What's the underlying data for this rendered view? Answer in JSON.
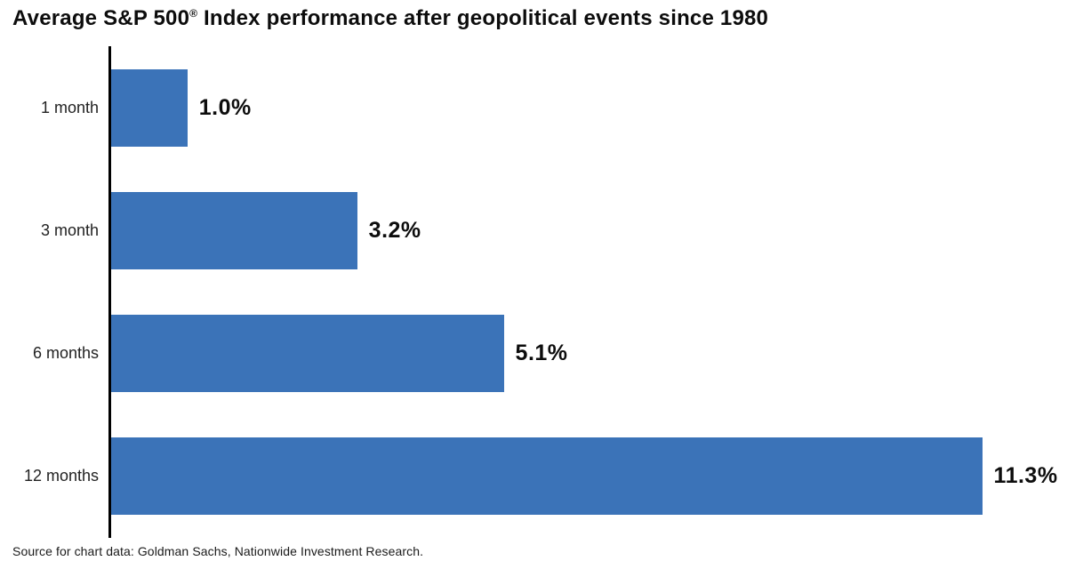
{
  "title": {
    "prefix": "Average S&P 500",
    "reg_mark": "®",
    "suffix": " Index performance after geopolitical events since 1980"
  },
  "source_note": "Source for chart data: Goldman Sachs, Nationwide Investment Research.",
  "colors": {
    "bar": "#3b73b8",
    "axis": "#000000",
    "title_text": "#0d0d0d",
    "label_text": "#222222"
  },
  "chart_data": {
    "type": "bar",
    "orientation": "horizontal",
    "title": "Average S&P 500® Index performance after geopolitical events since 1980",
    "categories": [
      "1 month",
      "3 month",
      "6 months",
      "12 months"
    ],
    "values": [
      1.0,
      3.2,
      5.1,
      11.3
    ],
    "value_labels": [
      "1.0%",
      "3.2%",
      "5.1%",
      "11.3%"
    ],
    "xlabel": "",
    "ylabel": "",
    "xlim": [
      0,
      12.4
    ],
    "grid": false,
    "legend": false,
    "source": "Source for chart data: Goldman Sachs, Nationwide Investment Research."
  }
}
